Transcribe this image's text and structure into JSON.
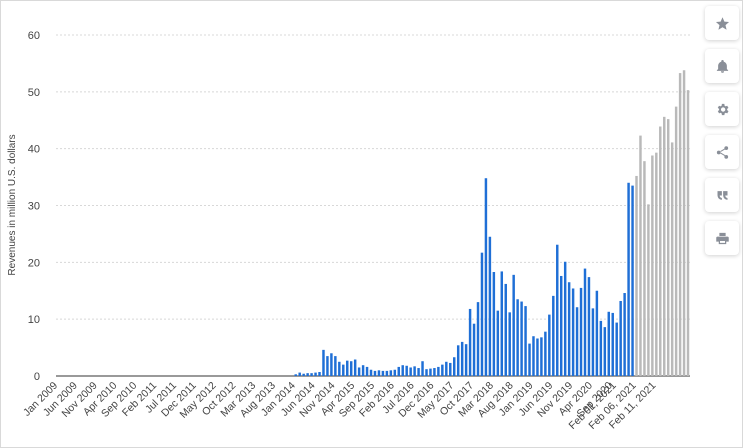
{
  "colors": {
    "actual": "#1f6fd6",
    "forecast": "#b9b9b9",
    "grid": "#d8d8d8",
    "axis_text": "#444444"
  },
  "toolbar": {
    "icons": [
      "star-icon",
      "bell-icon",
      "gear-icon",
      "share-icon",
      "quote-icon",
      "print-icon"
    ]
  },
  "chart_data": {
    "type": "bar",
    "title": "",
    "xlabel": "",
    "ylabel": "Revenues in million U.S. dollars",
    "ylim": [
      0,
      60
    ],
    "yticks": [
      0,
      10,
      20,
      30,
      40,
      50,
      60
    ],
    "grid": true,
    "x_tick_labels": [
      "Jan 2009",
      "Jun 2009",
      "Nov 2009",
      "Apr 2010",
      "Sep 2010",
      "Feb 2011",
      "Jul 2011",
      "Dec 2011",
      "May 2012",
      "Oct 2012",
      "Mar 2013",
      "Aug 2013",
      "Jan 2014",
      "Jun 2014",
      "Nov 2014",
      "Apr 2015",
      "Sep 2015",
      "Feb 2016",
      "Jul 2016",
      "Dec 2016",
      "May 2017",
      "Oct 2017",
      "Mar 2018",
      "Aug 2018",
      "Jan 2019",
      "Jun 2019",
      "Nov 2019",
      "Apr 2020",
      "Sep 2020",
      "Feb 01, 2021",
      "Feb 06, 2021",
      "Feb 11, 2021"
    ],
    "series": [
      {
        "values": [
          0,
          0,
          0,
          0,
          0,
          0,
          0,
          0,
          0,
          0,
          0,
          0,
          0,
          0,
          0,
          0,
          0,
          0,
          0,
          0,
          0,
          0,
          0,
          0,
          0,
          0,
          0,
          0,
          0,
          0,
          0,
          0,
          0,
          0,
          0,
          0,
          0,
          0,
          0,
          0,
          0,
          0,
          0,
          0,
          0,
          0,
          0,
          0,
          0,
          0,
          0,
          0,
          0,
          0,
          0,
          0,
          0,
          0,
          0,
          0,
          0.3,
          0.6,
          0.4,
          0.5,
          0.5,
          0.6,
          0.7,
          4.6,
          3.5,
          4.0,
          3.5,
          2.5,
          2.0,
          2.7,
          2.6,
          2.9,
          1.5,
          1.9,
          1.6,
          1.1,
          0.9,
          1.0,
          0.9,
          0.9,
          1.0,
          1.1,
          1.6,
          1.9,
          1.8,
          1.5,
          1.7,
          1.4,
          2.6,
          1.2,
          1.3,
          1.4,
          1.6,
          2.0,
          2.5,
          2.3,
          3.3,
          5.4,
          6.0,
          5.6,
          11.8,
          9.2,
          13.0,
          21.7,
          34.8,
          24.5,
          18.3,
          11.5,
          18.4,
          16.2,
          11.2,
          17.8,
          13.5,
          13.1,
          12.3,
          5.7,
          7.0,
          6.6,
          6.8,
          7.8,
          10.8,
          14.1,
          23.1,
          17.6,
          20.1,
          16.5,
          15.4,
          12.1,
          15.5,
          18.9,
          17.4,
          11.9,
          15.0,
          9.7,
          8.6,
          11.3,
          11.1,
          9.4,
          13.2,
          14.6,
          34.0,
          33.5
        ]
      },
      {
        "values": [
          35.2,
          42.3,
          37.8,
          30.2,
          38.8,
          39.3,
          43.9,
          45.6,
          45.2,
          41.1,
          47.4,
          53.3,
          53.8,
          50.3
        ]
      }
    ]
  }
}
